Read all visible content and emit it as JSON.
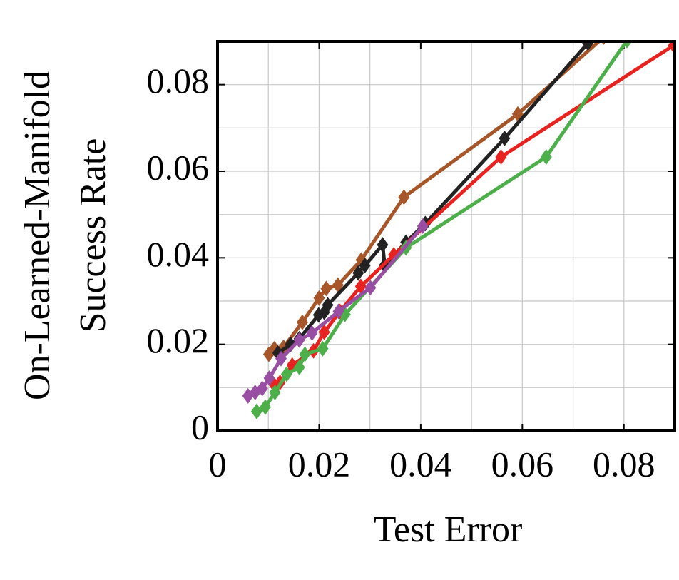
{
  "chart_data": {
    "type": "line",
    "xlabel": "Test Error",
    "ylabel": [
      "On-Learned-Manifold",
      "Success Rate"
    ],
    "xlim": [
      0,
      0.09
    ],
    "ylim": [
      0,
      0.09
    ],
    "xticks": [
      0,
      0.02,
      0.04,
      0.06,
      0.08
    ],
    "yticks": [
      0,
      0.02,
      0.04,
      0.06,
      0.08
    ],
    "xminorticks": [
      0.01,
      0.03,
      0.05,
      0.07
    ],
    "yminorticks": [
      0.01,
      0.03,
      0.05,
      0.07
    ],
    "grid": true,
    "series": [
      {
        "color": "#a65628",
        "x": [
          0.0101,
          0.0112,
          0.013,
          0.0167,
          0.02,
          0.0214,
          0.0237,
          0.0283,
          0.0367,
          0.0591,
          0.076
        ],
        "values": [
          0.0177,
          0.019,
          0.0193,
          0.0251,
          0.0307,
          0.0329,
          0.0337,
          0.0395,
          0.054,
          0.0732,
          0.091
        ]
      },
      {
        "color": "#222222",
        "x": [
          0.0119,
          0.0144,
          0.0161,
          0.0199,
          0.021,
          0.0217,
          0.0277,
          0.029,
          0.0325,
          0.0329,
          0.0371,
          0.0409,
          0.0565,
          0.0729,
          0.075
        ],
        "values": [
          0.018,
          0.02,
          0.0213,
          0.0268,
          0.0274,
          0.0291,
          0.0365,
          0.0382,
          0.043,
          0.0383,
          0.0436,
          0.0479,
          0.0676,
          0.0896,
          0.0924
        ]
      },
      {
        "color": "#e8231f",
        "x": [
          0.0112,
          0.0123,
          0.0147,
          0.0189,
          0.021,
          0.0241,
          0.0282,
          0.0347,
          0.0558,
          0.0898
        ],
        "values": [
          0.0106,
          0.0112,
          0.0152,
          0.0185,
          0.0228,
          0.0276,
          0.0334,
          0.0407,
          0.0633,
          0.0891
        ]
      },
      {
        "color": "#4daf4a",
        "x": [
          0.0077,
          0.0094,
          0.0113,
          0.0136,
          0.0161,
          0.0172,
          0.0207,
          0.0251,
          0.0371,
          0.0647,
          0.0806
        ],
        "values": [
          0.0045,
          0.0055,
          0.0089,
          0.0131,
          0.0147,
          0.0177,
          0.019,
          0.0269,
          0.0423,
          0.0633,
          0.0902
        ]
      },
      {
        "color": "#984ea3",
        "x": [
          0.006,
          0.0074,
          0.0088,
          0.0102,
          0.0125,
          0.0161,
          0.0186,
          0.0238,
          0.0301,
          0.0404
        ],
        "values": [
          0.0081,
          0.0089,
          0.0098,
          0.0122,
          0.0167,
          0.021,
          0.0226,
          0.0276,
          0.0331,
          0.0473
        ]
      }
    ]
  }
}
